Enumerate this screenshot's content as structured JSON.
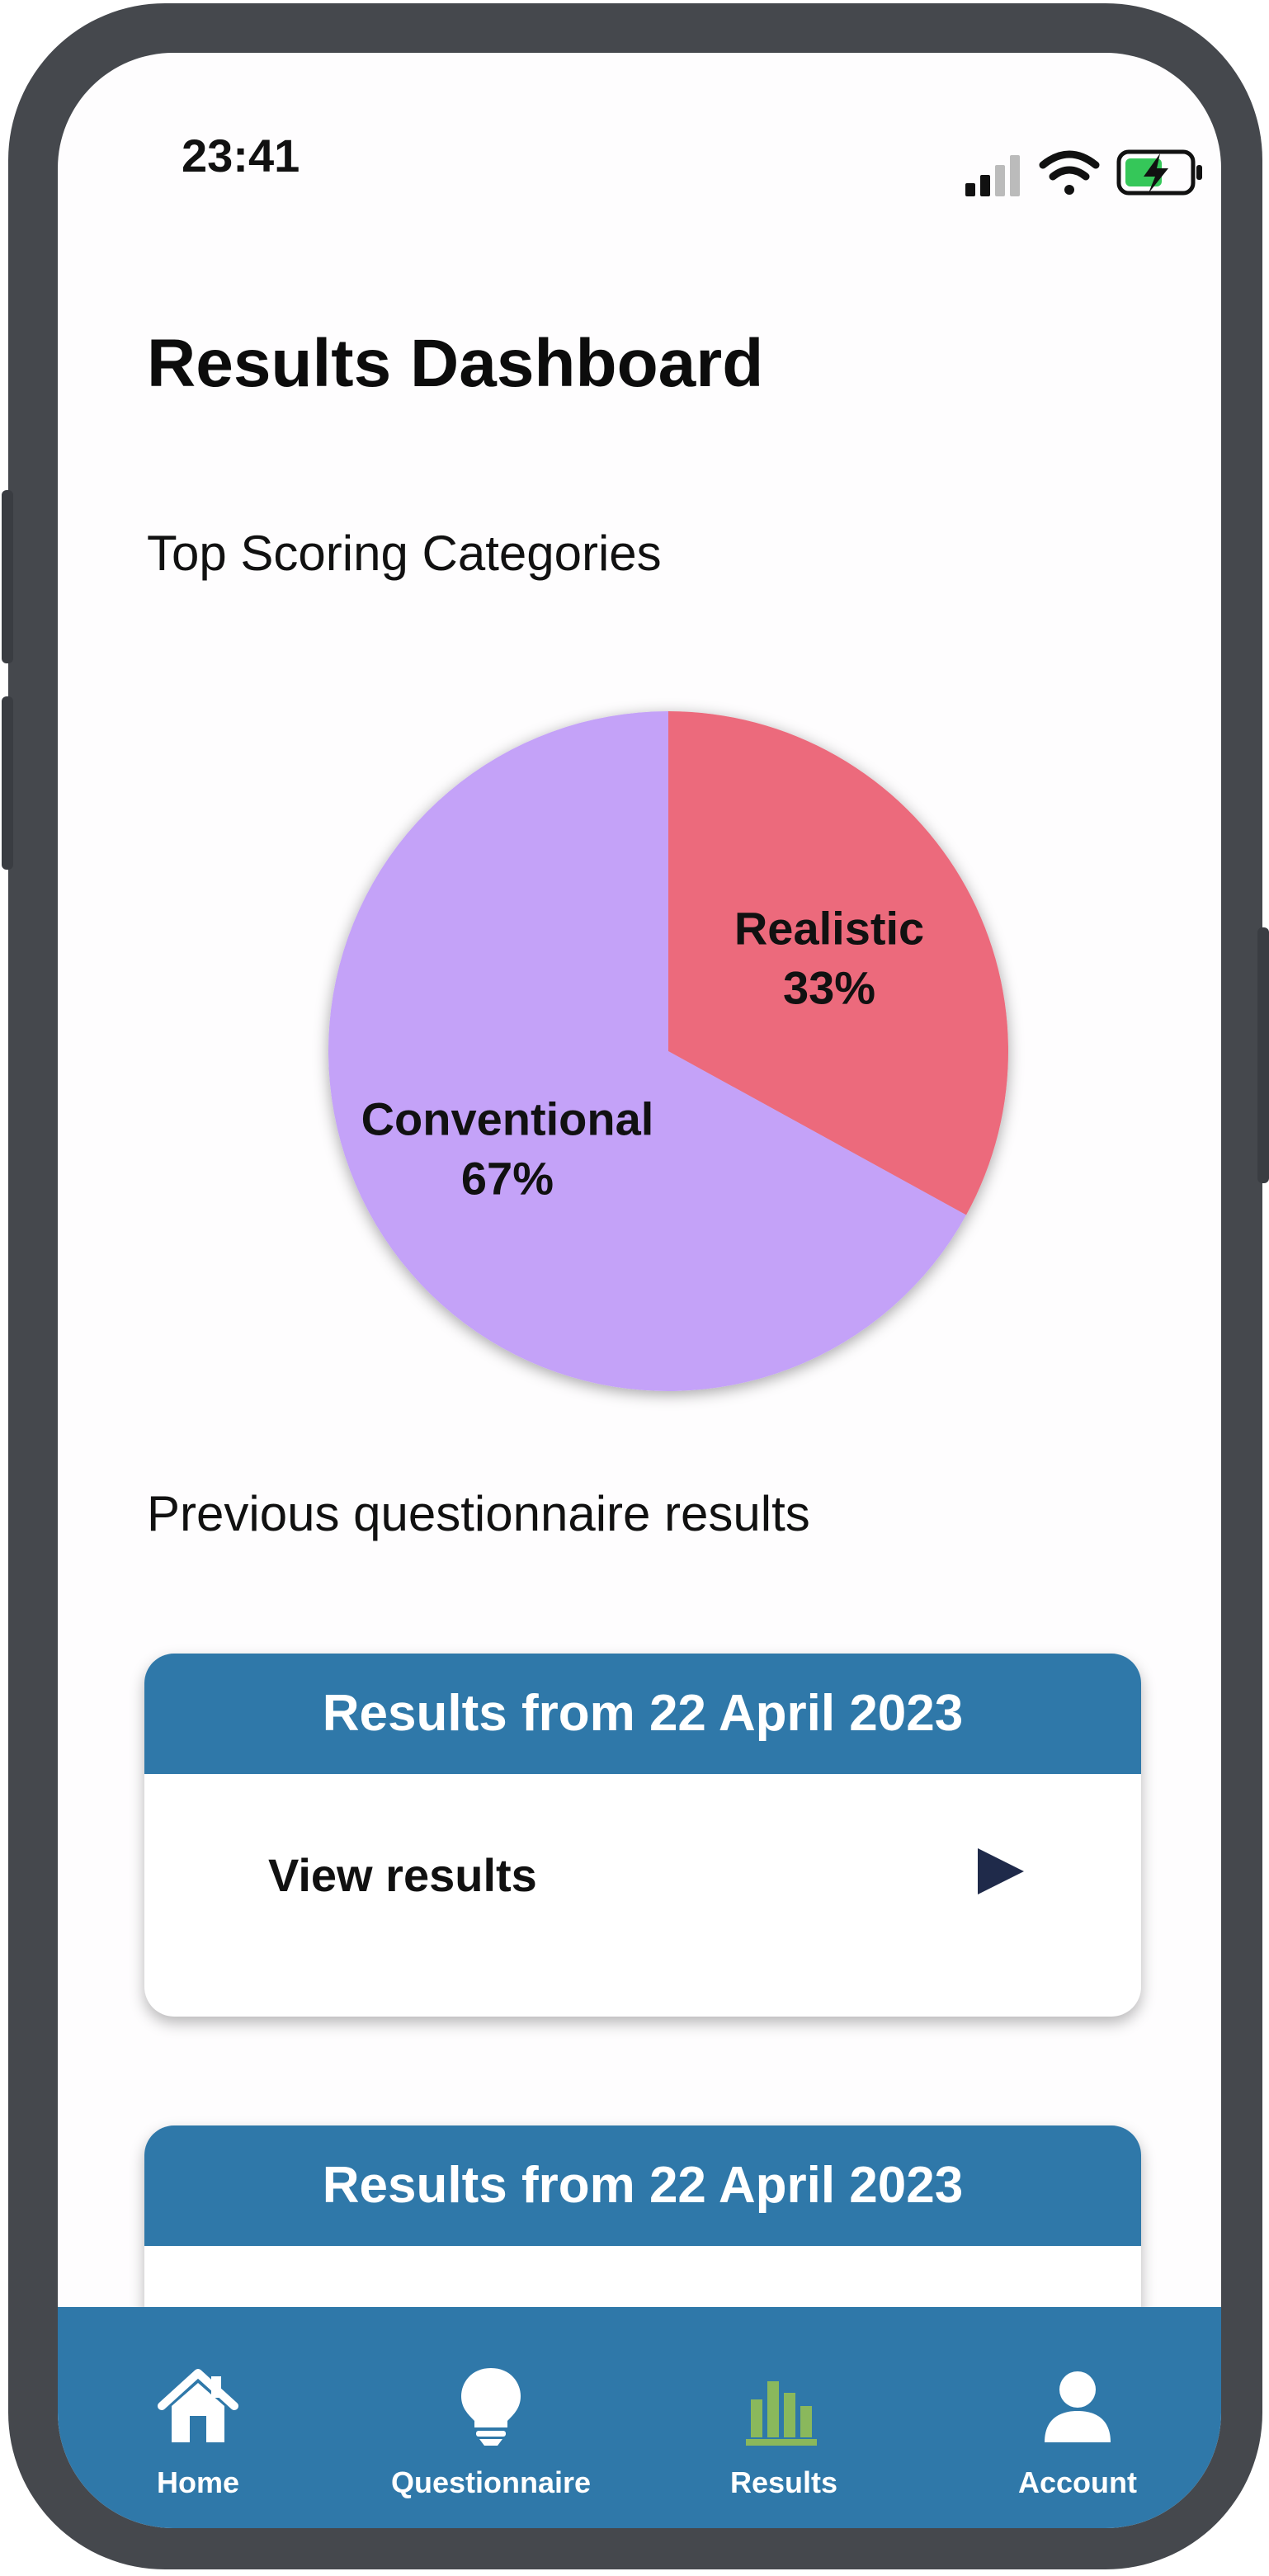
{
  "status_bar": {
    "time": "23:41"
  },
  "page": {
    "title": "Results Dashboard"
  },
  "chart_section": {
    "title": "Top Scoring Categories"
  },
  "chart_data": {
    "type": "pie",
    "title": "",
    "slices": [
      {
        "label": "Realistic",
        "value": 33,
        "value_label": "33%",
        "color": "#ec6a7c"
      },
      {
        "label": "Conventional",
        "value": 67,
        "value_label": "67%",
        "color": "#c4a2f8"
      }
    ]
  },
  "previous_section": {
    "title": "Previous questionnaire results"
  },
  "result_cards": [
    {
      "header": "Results from 22 April 2023",
      "action_label": "View results",
      "action_icon": "play-icon"
    },
    {
      "header": "Results from 22 April 2023"
    }
  ],
  "colors": {
    "accent": "#2f78a9",
    "active_tab": "#8ab85c",
    "tab_icon": "#ffffff"
  },
  "tabbar": {
    "tabs": [
      {
        "label": "Home",
        "icon": "home-icon",
        "active": false
      },
      {
        "label": "Questionnaire",
        "icon": "lightbulb-icon",
        "active": false
      },
      {
        "label": "Results",
        "icon": "bar-chart-icon",
        "active": true
      },
      {
        "label": "Account",
        "icon": "person-icon",
        "active": false
      }
    ]
  }
}
